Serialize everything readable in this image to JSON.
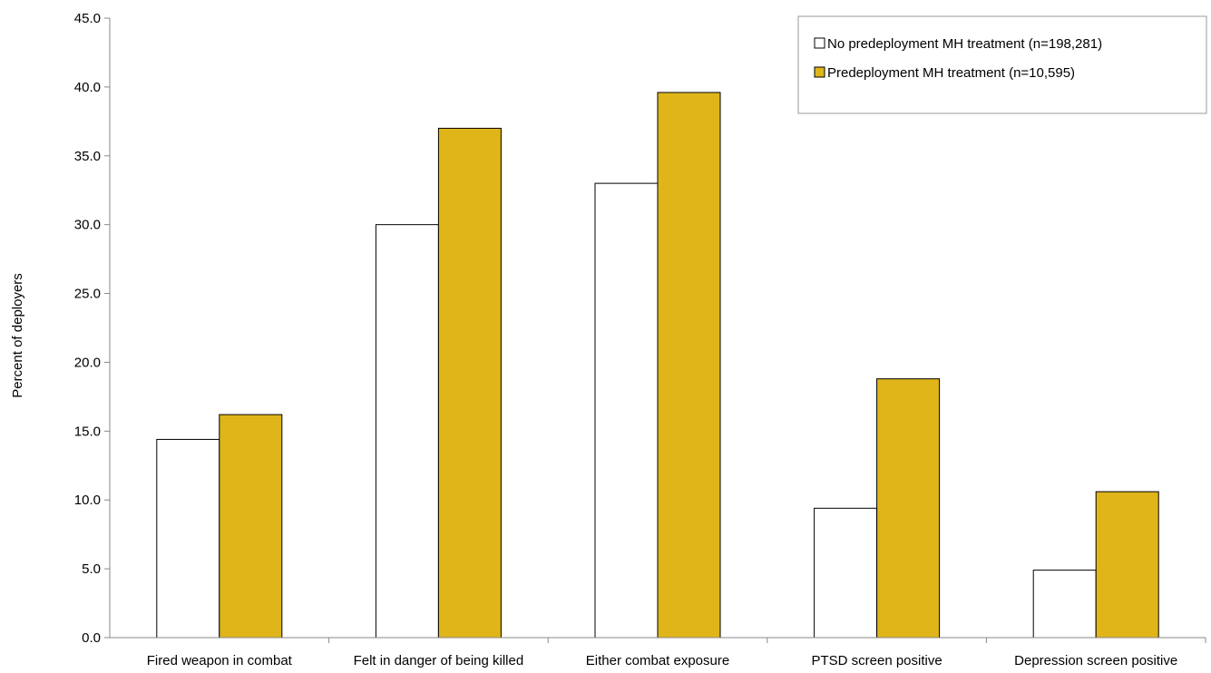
{
  "chart_data": {
    "type": "bar",
    "title": "",
    "xlabel": "",
    "ylabel": "Percent of deployers",
    "ylim": [
      0,
      45
    ],
    "ytick_step": 5,
    "ytick_labels": [
      "0.0",
      "5.0",
      "10.0",
      "15.0",
      "20.0",
      "25.0",
      "30.0",
      "35.0",
      "40.0",
      "45.0"
    ],
    "categories": [
      "Fired weapon in combat",
      "Felt in danger of being killed",
      "Either combat exposure",
      "PTSD screen positive",
      "Depression screen positive"
    ],
    "series": [
      {
        "name": "No predeployment MH treatment (n=198,281)",
        "color": "#ffffff",
        "values": [
          14.4,
          30.0,
          33.0,
          9.4,
          4.9
        ]
      },
      {
        "name": "Predeployment MH treatment (n=10,595)",
        "color": "#dfb51a",
        "values": [
          16.2,
          37.0,
          39.6,
          18.8,
          10.6
        ]
      }
    ],
    "legend_position": "top-right",
    "grid": false
  }
}
